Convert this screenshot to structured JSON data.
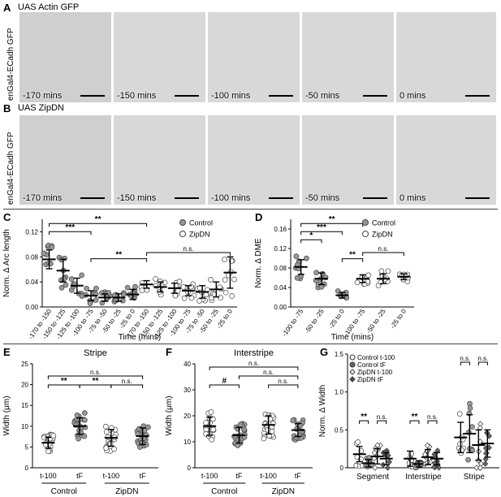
{
  "panels": {
    "A": {
      "letter": "A",
      "title": "UAS Actin GFP",
      "side_label": "enGal4-ECadh GFP",
      "timepoints": [
        "-170 mins",
        "-150 mins",
        "-100 mins",
        "-50 mins",
        "0 mins"
      ]
    },
    "B": {
      "letter": "B",
      "title": "UAS ZipDN",
      "side_label": "enGal4-ECadh GFP",
      "timepoints": [
        "-170 mins",
        "-150 mins",
        "-100 mins",
        "-50 mins",
        "0 mins"
      ]
    }
  },
  "chart_data": [
    {
      "id": "C",
      "letter": "C",
      "type": "scatter",
      "ylabel": "Norm. Δ Arc length",
      "xlabel": "Time (mins)",
      "yticks": [
        "0.00",
        "0.04",
        "0.08",
        "0.12"
      ],
      "ylim": [
        0,
        0.14
      ],
      "categories": [
        "-170 to -150",
        "-150 to -125",
        "-125 to -100",
        "-100 to -75",
        "-75 to -50",
        "-50 to -25",
        "-25 to 0",
        "-170 to -150",
        "-150 to -125",
        "-125 to -100",
        "-100 to -75",
        "-75 to -50",
        "-50 to -25",
        "-25 to 0"
      ],
      "series": [
        {
          "name": "Control",
          "filled": true,
          "cats": [
            0,
            1,
            2,
            3,
            4,
            5,
            6
          ],
          "means": [
            0.076,
            0.058,
            0.034,
            0.018,
            0.015,
            0.015,
            0.02
          ],
          "sd": [
            0.015,
            0.018,
            0.012,
            0.008,
            0.006,
            0.006,
            0.008
          ]
        },
        {
          "name": "ZipDN",
          "filled": false,
          "cats": [
            7,
            8,
            9,
            10,
            11,
            12,
            13
          ],
          "means": [
            0.036,
            0.032,
            0.03,
            0.026,
            0.024,
            0.028,
            0.055
          ],
          "sd": [
            0.006,
            0.008,
            0.008,
            0.008,
            0.01,
            0.012,
            0.025
          ]
        }
      ],
      "sig": [
        {
          "a": 0,
          "b": 3,
          "label": "***",
          "level": 1
        },
        {
          "a": 0,
          "b": 7,
          "label": "**",
          "level": 2
        },
        {
          "a": 3,
          "b": 7,
          "label": "**",
          "level": 0
        },
        {
          "a": 7,
          "b": 13,
          "label": "n.s.",
          "level": 0
        }
      ]
    },
    {
      "id": "D",
      "letter": "D",
      "type": "scatter",
      "ylabel": "Norm. Δ DME",
      "xlabel": "Time (mins)",
      "yticks": [
        "0.00",
        "0.04",
        "0.08",
        "0.12",
        "0.16"
      ],
      "ylim": [
        0,
        0.18
      ],
      "categories": [
        "-100 to -75",
        "-50 to -25",
        "-25 to 0",
        "-100 to -75",
        "-50 to -25",
        "-25 to 0"
      ],
      "series": [
        {
          "name": "Control",
          "filled": true,
          "cats": [
            0,
            1,
            2
          ],
          "means": [
            0.082,
            0.058,
            0.024
          ],
          "sd": [
            0.015,
            0.012,
            0.006
          ]
        },
        {
          "name": "ZipDN",
          "filled": false,
          "cats": [
            3,
            4,
            5
          ],
          "means": [
            0.058,
            0.058,
            0.062
          ],
          "sd": [
            0.008,
            0.01,
            0.006
          ]
        }
      ],
      "sig": [
        {
          "a": 0,
          "b": 1,
          "label": "*",
          "level": 0
        },
        {
          "a": 0,
          "b": 2,
          "label": "***",
          "level": 1
        },
        {
          "a": 0,
          "b": 3,
          "label": "**",
          "level": 2
        },
        {
          "a": 2,
          "b": 3,
          "label": "**",
          "level": 0
        },
        {
          "a": 3,
          "b": 5,
          "label": "n.s.",
          "level": 0
        }
      ]
    },
    {
      "id": "E",
      "letter": "E",
      "type": "scatter",
      "title": "Stripe",
      "ylabel": "Width (μm)",
      "yticks": [
        "0",
        "5",
        "10",
        "15",
        "20",
        "25"
      ],
      "ylim": [
        0,
        25
      ],
      "categories": [
        "t-100",
        "tF",
        "t-100",
        "tF"
      ],
      "groups": [
        "Control",
        "ZipDN"
      ],
      "series": [
        {
          "name": "Control",
          "filled": false,
          "cats": [
            0
          ],
          "means": [
            6.0
          ],
          "sd": [
            1.3
          ]
        },
        {
          "name": "Control",
          "filled": true,
          "cats": [
            1
          ],
          "means": [
            10.0
          ],
          "sd": [
            2.0
          ]
        },
        {
          "name": "ZipDN",
          "filled": false,
          "cats": [
            2
          ],
          "means": [
            7.2
          ],
          "sd": [
            2.0
          ]
        },
        {
          "name": "ZipDN",
          "filled": true,
          "cats": [
            3
          ],
          "means": [
            7.6
          ],
          "sd": [
            2.0
          ]
        }
      ],
      "sig": [
        {
          "a": 0,
          "b": 1,
          "label": "**",
          "level": 0
        },
        {
          "a": 1,
          "b": 2,
          "label": "**",
          "level": 0
        },
        {
          "a": 2,
          "b": 3,
          "label": "n.s.",
          "level": 0
        },
        {
          "a": 0,
          "b": 3,
          "label": "n.s.",
          "level": 1
        }
      ]
    },
    {
      "id": "F",
      "letter": "F",
      "type": "scatter",
      "title": "Interstripe",
      "ylabel": "Width (μm)",
      "yticks": [
        "0",
        "10",
        "20",
        "30",
        "40"
      ],
      "ylim": [
        0,
        40
      ],
      "categories": [
        "t-100",
        "tF",
        "t-100",
        "tF"
      ],
      "groups": [
        "Control",
        "ZipDN"
      ],
      "series": [
        {
          "name": "Control",
          "filled": false,
          "cats": [
            0
          ],
          "means": [
            16.0
          ],
          "sd": [
            3.5
          ]
        },
        {
          "name": "Control",
          "filled": true,
          "cats": [
            1
          ],
          "means": [
            12.5
          ],
          "sd": [
            3.0
          ]
        },
        {
          "name": "ZipDN",
          "filled": false,
          "cats": [
            2
          ],
          "means": [
            16.5
          ],
          "sd": [
            3.5
          ]
        },
        {
          "name": "ZipDN",
          "filled": true,
          "cats": [
            3
          ],
          "means": [
            14.5
          ],
          "sd": [
            2.5
          ]
        }
      ],
      "sig": [
        {
          "a": 0,
          "b": 1,
          "label": "#",
          "level": 0
        },
        {
          "a": 2,
          "b": 3,
          "label": "n.s.",
          "level": 0
        },
        {
          "a": 1,
          "b": 3,
          "label": "n.s.",
          "level": 1
        },
        {
          "a": 0,
          "b": 3,
          "label": "n.s.",
          "level": 2
        }
      ]
    },
    {
      "id": "G",
      "letter": "G",
      "type": "scatter",
      "ylabel": "Norm. Δ Width",
      "yticks": [
        "0",
        "0.5",
        "1.0",
        "1.5"
      ],
      "ylim": [
        0,
        1.5
      ],
      "categories": [
        "Segment",
        "Interstripe",
        "Stripe"
      ],
      "legend": [
        "Control t-100",
        "Control tF",
        "ZipDN t-100",
        "ZipDN tF"
      ],
      "series": [
        {
          "name": "Control t-100",
          "cats": [
            0,
            1,
            2
          ],
          "means": [
            0.18,
            0.12,
            0.4
          ],
          "sd": [
            0.1,
            0.1,
            0.2
          ]
        },
        {
          "name": "Control tF",
          "cats": [
            0,
            1,
            2
          ],
          "means": [
            0.06,
            0.05,
            0.45
          ],
          "sd": [
            0.05,
            0.04,
            0.25
          ]
        },
        {
          "name": "ZipDN t-100",
          "cats": [
            0,
            1,
            2
          ],
          "means": [
            0.15,
            0.14,
            0.3
          ],
          "sd": [
            0.1,
            0.1,
            0.2
          ]
        },
        {
          "name": "ZipDN tF",
          "cats": [
            0,
            1,
            2
          ],
          "means": [
            0.12,
            0.12,
            0.32
          ],
          "sd": [
            0.08,
            0.08,
            0.18
          ]
        }
      ],
      "sig": [
        {
          "cat": 0,
          "pair": [
            0,
            1
          ],
          "label": "**"
        },
        {
          "cat": 0,
          "pair": [
            2,
            3
          ],
          "label": "n.s."
        },
        {
          "cat": 1,
          "pair": [
            0,
            1
          ],
          "label": "**"
        },
        {
          "cat": 1,
          "pair": [
            2,
            3
          ],
          "label": "n.s."
        },
        {
          "cat": 2,
          "pair": [
            0,
            1
          ],
          "label": "n.s."
        },
        {
          "cat": 2,
          "pair": [
            2,
            3
          ],
          "label": "n.s."
        }
      ]
    }
  ]
}
